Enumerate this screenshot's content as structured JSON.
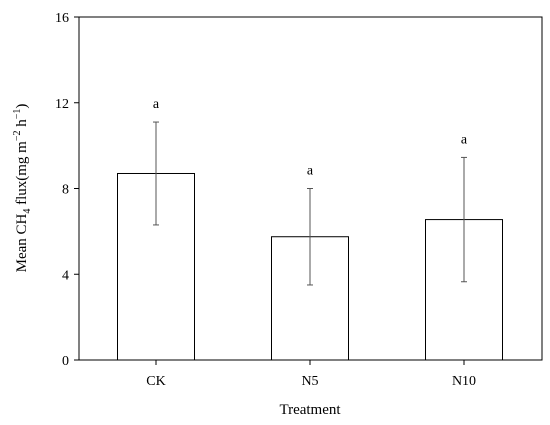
{
  "chart_data": {
    "type": "bar",
    "categories": [
      "CK",
      "N5",
      "N10"
    ],
    "values": [
      8.7,
      5.75,
      6.55
    ],
    "errors": [
      2.4,
      2.25,
      2.9
    ],
    "significance_labels": [
      "a",
      "a",
      "a"
    ],
    "xlabel": "Treatment",
    "ylabel": {
      "prefix": "Mean CH",
      "sub": "4",
      "middle": " flux(mg m",
      "sup1": "−2",
      "between": " h",
      "sup2": "−1",
      "suffix": ")"
    },
    "ylim": [
      0,
      16
    ],
    "yticks": [
      0,
      4,
      8,
      12,
      16
    ],
    "bar_fill": "#ffffff",
    "bar_stroke": "#000000",
    "grid": false
  }
}
